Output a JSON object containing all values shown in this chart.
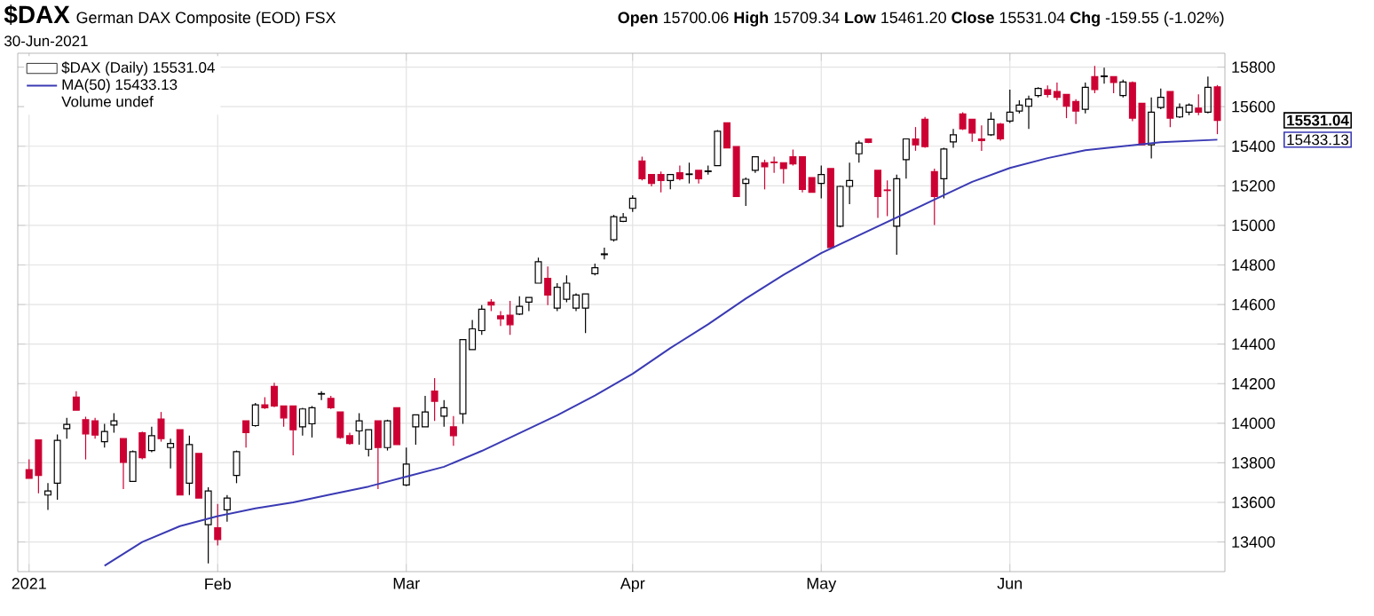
{
  "chart_data": {
    "type": "candlestick",
    "title": "$DAX",
    "subtitle": "German DAX Composite (EOD) FSX",
    "categories": [
      "2021",
      null,
      null,
      null,
      null,
      null,
      null,
      null,
      null,
      null,
      null,
      null,
      null,
      null,
      null,
      null,
      null,
      null,
      null,
      null,
      "Feb",
      null,
      null,
      null,
      null,
      null,
      null,
      null,
      null,
      null,
      null,
      null,
      null,
      null,
      null,
      null,
      null,
      null,
      null,
      null,
      "Mar",
      null,
      null,
      null,
      null,
      null,
      null,
      null,
      null,
      null,
      null,
      null,
      null,
      null,
      null,
      null,
      null,
      null,
      null,
      null,
      null,
      null,
      null,
      null,
      "Apr",
      null,
      null,
      null,
      null,
      null,
      null,
      null,
      null,
      null,
      null,
      null,
      null,
      null,
      null,
      null,
      null,
      null,
      null,
      null,
      "May",
      null,
      null,
      null,
      null,
      null,
      null,
      null,
      null,
      null,
      null,
      null,
      null,
      null,
      null,
      null,
      null,
      null,
      null,
      null,
      "Jun",
      null,
      null,
      null,
      null,
      null,
      null,
      null,
      null,
      null,
      null,
      null,
      null,
      null,
      null,
      null,
      null,
      null,
      null,
      null,
      null,
      null,
      null
    ],
    "series": [
      {
        "name": "$DAX (Daily) 15531.04",
        "type": "candlestick",
        "colors": [
          "#cc0033",
          "#cc0033",
          "#000000",
          "#000000",
          "#000000",
          "#cc0033",
          "#cc0033",
          "#cc0033",
          "#000000",
          "#000000",
          "#cc0033",
          "#000000",
          "#cc0033",
          "#000000",
          "#cc0033",
          "#000000",
          "#cc0033",
          "#000000",
          "#cc0033",
          "#000000",
          "#cc0033",
          "#000000",
          "#000000",
          "#cc0033",
          "#000000",
          "#cc0033",
          "#cc0033",
          "#cc0033",
          "#cc0033",
          "#000000",
          "#000000",
          "#000000",
          "#cc0033",
          "#cc0033",
          "#cc0033",
          "#000000",
          "#000000",
          "#cc0033",
          "#000000",
          "#cc0033",
          "#000000",
          "#000000",
          "#000000",
          "#cc0033",
          "#000000",
          "#cc0033",
          "#000000",
          "#000000",
          "#000000",
          "#cc0033",
          "#cc0033",
          "#cc0033",
          "#000000",
          "#000000",
          "#000000",
          "#cc0033",
          "#000000",
          "#000000",
          "#000000",
          "#000000",
          "#000000",
          "#000000",
          "#000000",
          "#000000",
          "#000000",
          "#cc0033",
          "#cc0033",
          "#cc0033",
          "#000000",
          "#cc0033",
          "#000000",
          "#cc0033",
          "#000000",
          "#000000",
          "#cc0033",
          "#cc0033",
          "#000000",
          "#000000",
          "#cc0033",
          "#cc0033",
          "#cc0033",
          "#cc0033",
          "#cc0033",
          "#cc0033",
          "#000000",
          "#cc0033",
          "#000000",
          "#000000",
          "#000000",
          "#cc0033",
          "#cc0033",
          "#cc0033",
          "#000000",
          "#000000",
          "#cc0033",
          "#cc0033",
          "#cc0033",
          "#000000",
          "#000000",
          "#cc0033",
          "#cc0033",
          "#cc0033",
          "#000000",
          "#cc0033",
          "#000000",
          "#000000",
          "#000000",
          "#000000",
          "#cc0033",
          "#cc0033",
          "#cc0033",
          "#cc0033",
          "#000000",
          "#cc0033",
          "#000000",
          "#cc0033",
          "#000000",
          "#cc0033",
          "#cc0033",
          "#000000",
          "#000000",
          "#cc0033",
          "#000000",
          "#000000",
          "#cc0033",
          "#000000",
          "#cc0033"
        ],
        "ohlc": [
          [
            13766,
            13817,
            13721,
            13721
          ],
          [
            13916,
            13916,
            13646,
            13736
          ],
          [
            13637,
            13697,
            13562,
            13658
          ],
          [
            13697,
            13943,
            13613,
            13913
          ],
          [
            13973,
            14027,
            13922,
            13994
          ],
          [
            14132,
            14162,
            14066,
            14066
          ],
          [
            14018,
            14033,
            13817,
            13946
          ],
          [
            14012,
            14027,
            13922,
            13940
          ],
          [
            13907,
            13997,
            13877,
            13958
          ],
          [
            13991,
            14051,
            13952,
            14012
          ],
          [
            13922,
            13922,
            13667,
            13802
          ],
          [
            13706,
            13862,
            13706,
            13856
          ],
          [
            13952,
            13958,
            13817,
            13826
          ],
          [
            13862,
            13982,
            13853,
            13937
          ],
          [
            14021,
            14057,
            13907,
            13922
          ],
          [
            13877,
            13922,
            13772,
            13898
          ],
          [
            13967,
            13967,
            13637,
            13637
          ],
          [
            13697,
            13937,
            13637,
            13892
          ],
          [
            13847,
            13847,
            13622,
            13622
          ],
          [
            13487,
            13676,
            13292,
            13658
          ],
          [
            13472,
            13592,
            13382,
            13412
          ],
          [
            13562,
            13637,
            13502,
            13622
          ],
          [
            13736,
            13862,
            13697,
            13856
          ],
          [
            14012,
            14012,
            13877,
            13952
          ],
          [
            13988,
            14102,
            13982,
            14093
          ],
          [
            14093,
            14132,
            14072,
            14078
          ],
          [
            14186,
            14204,
            14081,
            14087
          ],
          [
            14087,
            14087,
            13982,
            14027
          ],
          [
            14087,
            14087,
            13838,
            13967
          ],
          [
            13982,
            14078,
            13937,
            14072
          ],
          [
            13997,
            14087,
            13928,
            14078
          ],
          [
            14147,
            14162,
            14117,
            14150
          ],
          [
            14126,
            14138,
            14072,
            14078
          ],
          [
            14057,
            14057,
            13922,
            13928
          ],
          [
            13937,
            13952,
            13892,
            13898
          ],
          [
            13961,
            14051,
            13892,
            14012
          ],
          [
            13868,
            13967,
            13832,
            13967
          ],
          [
            14012,
            14012,
            13667,
            13877
          ],
          [
            13877,
            14018,
            13862,
            14012
          ],
          [
            14078,
            14078,
            13892,
            13892
          ],
          [
            13688,
            13877,
            13682,
            13793
          ],
          [
            13982,
            14042,
            13892,
            14042
          ],
          [
            13982,
            14138,
            13982,
            14057
          ],
          [
            14162,
            14228,
            14012,
            14111
          ],
          [
            14036,
            14117,
            13982,
            14078
          ],
          [
            13982,
            14036,
            13886,
            13937
          ],
          [
            14048,
            14423,
            13997,
            14423
          ],
          [
            14372,
            14522,
            14372,
            14477
          ],
          [
            14468,
            14597,
            14447,
            14576
          ],
          [
            14612,
            14627,
            14567,
            14597
          ],
          [
            14543,
            14567,
            14492,
            14528
          ],
          [
            14546,
            14618,
            14447,
            14498
          ],
          [
            14552,
            14642,
            14546,
            14591
          ],
          [
            14612,
            14636,
            14567,
            14636
          ],
          [
            14708,
            14837,
            14708,
            14816
          ],
          [
            14732,
            14792,
            14597,
            14648
          ],
          [
            14582,
            14708,
            14567,
            14687
          ],
          [
            14627,
            14747,
            14612,
            14708
          ],
          [
            14582,
            14657,
            14567,
            14648
          ],
          [
            14582,
            14654,
            14456,
            14654
          ],
          [
            14756,
            14807,
            14747,
            14786
          ],
          [
            14852,
            14888,
            14828,
            14856
          ],
          [
            14927,
            15053,
            14918,
            15044
          ],
          [
            15020,
            15062,
            15017,
            15041
          ],
          [
            15086,
            15152,
            15068,
            15137
          ],
          [
            15326,
            15347,
            15227,
            15236
          ],
          [
            15257,
            15257,
            15197,
            15212
          ],
          [
            15257,
            15272,
            15167,
            15227
          ],
          [
            15227,
            15257,
            15182,
            15257
          ],
          [
            15266,
            15302,
            15227,
            15236
          ],
          [
            15257,
            15317,
            15212,
            15260
          ],
          [
            15278,
            15278,
            15212,
            15236
          ],
          [
            15272,
            15302,
            15257,
            15275
          ],
          [
            15302,
            15482,
            15302,
            15476
          ],
          [
            15518,
            15518,
            15392,
            15392
          ],
          [
            15398,
            15398,
            15146,
            15146
          ],
          [
            15212,
            15242,
            15098,
            15233
          ],
          [
            15278,
            15347,
            15266,
            15347
          ],
          [
            15317,
            15332,
            15182,
            15296
          ],
          [
            15320,
            15347,
            15266,
            15317
          ],
          [
            15317,
            15317,
            15212,
            15287
          ],
          [
            15347,
            15383,
            15302,
            15311
          ],
          [
            15347,
            15347,
            15167,
            15182
          ],
          [
            15242,
            15242,
            15167,
            15167
          ],
          [
            15212,
            15302,
            15137,
            15257
          ],
          [
            15287,
            15287,
            14888,
            14888
          ],
          [
            14996,
            15200,
            14990,
            15197
          ],
          [
            15197,
            15317,
            15107,
            15227
          ],
          [
            15362,
            15428,
            15317,
            15416
          ],
          [
            15437,
            15437,
            15416,
            15419
          ],
          [
            15278,
            15278,
            15038,
            15146
          ],
          [
            15179,
            15227,
            15047,
            15176
          ],
          [
            14996,
            15257,
            14852,
            15236
          ],
          [
            15332,
            15437,
            15236,
            15437
          ],
          [
            15437,
            15497,
            15377,
            15407
          ],
          [
            15536,
            15548,
            15392,
            15398
          ],
          [
            15272,
            15287,
            15002,
            15146
          ],
          [
            15236,
            15392,
            15137,
            15386
          ],
          [
            15422,
            15488,
            15392,
            15458
          ],
          [
            15563,
            15572,
            15482,
            15488
          ],
          [
            15536,
            15536,
            15422,
            15467
          ],
          [
            15437,
            15506,
            15377,
            15428
          ],
          [
            15458,
            15572,
            15452,
            15536
          ],
          [
            15512,
            15518,
            15428,
            15437
          ],
          [
            15527,
            15686,
            15518,
            15572
          ],
          [
            15578,
            15632,
            15566,
            15608
          ],
          [
            15602,
            15656,
            15488,
            15638
          ],
          [
            15656,
            15698,
            15647,
            15692
          ],
          [
            15686,
            15707,
            15647,
            15662
          ],
          [
            15677,
            15722,
            15632,
            15647
          ],
          [
            15662,
            15662,
            15542,
            15602
          ],
          [
            15626,
            15638,
            15512,
            15578
          ],
          [
            15587,
            15722,
            15566,
            15698
          ],
          [
            15752,
            15806,
            15668,
            15686
          ],
          [
            15752,
            15797,
            15716,
            15755
          ],
          [
            15752,
            15752,
            15668,
            15722
          ],
          [
            15656,
            15737,
            15647,
            15725
          ],
          [
            15722,
            15728,
            15527,
            15542
          ],
          [
            15617,
            15617,
            15407,
            15407
          ],
          [
            15407,
            15647,
            15338,
            15572
          ],
          [
            15596,
            15692,
            15587,
            15647
          ],
          [
            15677,
            15677,
            15497,
            15542
          ],
          [
            15548,
            15617,
            15542,
            15596
          ],
          [
            15572,
            15617,
            15557,
            15608
          ],
          [
            15593,
            15662,
            15557,
            15572
          ],
          [
            15572,
            15752,
            15566,
            15698
          ],
          [
            15700.06,
            15709.34,
            15461.2,
            15531.04
          ]
        ]
      },
      {
        "name": "MA(50) 15433.13",
        "type": "line",
        "color": "#3a3ab4",
        "values": [
          null,
          null,
          null,
          null,
          null,
          null,
          null,
          null,
          13280,
          null,
          null,
          null,
          13400,
          null,
          null,
          null,
          13480,
          null,
          null,
          null,
          13530,
          null,
          null,
          null,
          13570,
          null,
          null,
          null,
          13600,
          null,
          null,
          null,
          13640,
          null,
          null,
          null,
          13680,
          null,
          null,
          null,
          13730,
          null,
          null,
          null,
          13780,
          null,
          null,
          null,
          13860,
          null,
          null,
          null,
          13950,
          null,
          null,
          null,
          14040,
          null,
          null,
          null,
          14140,
          null,
          null,
          null,
          14250,
          null,
          null,
          null,
          14380,
          null,
          null,
          null,
          14500,
          null,
          null,
          null,
          14630,
          null,
          null,
          null,
          14750,
          null,
          null,
          null,
          14860,
          null,
          null,
          null,
          14950,
          null,
          null,
          null,
          15040,
          null,
          null,
          null,
          15130,
          null,
          null,
          null,
          15220,
          null,
          null,
          null,
          15290,
          null,
          null,
          null,
          15340,
          null,
          null,
          null,
          15380,
          null,
          null,
          null,
          15400,
          null,
          null,
          null,
          15420,
          null,
          null,
          null,
          null,
          null,
          15433.13
        ]
      }
    ],
    "ylim": [
      13250,
      15870
    ],
    "yticks": [
      13400,
      13600,
      13800,
      14000,
      14200,
      14400,
      14600,
      14800,
      15000,
      15200,
      15400,
      15600,
      15800
    ],
    "grid": true,
    "legend": "top left",
    "annotations": [
      "30-Jun-2021",
      "Volume undef",
      "**Open** 15700.06 **High** 15709.34 **Low** 15461.20 **Close** 15531.04 **Chg** -159.55 (-1.02%)",
      "15531.04",
      "15433.13"
    ]
  }
}
